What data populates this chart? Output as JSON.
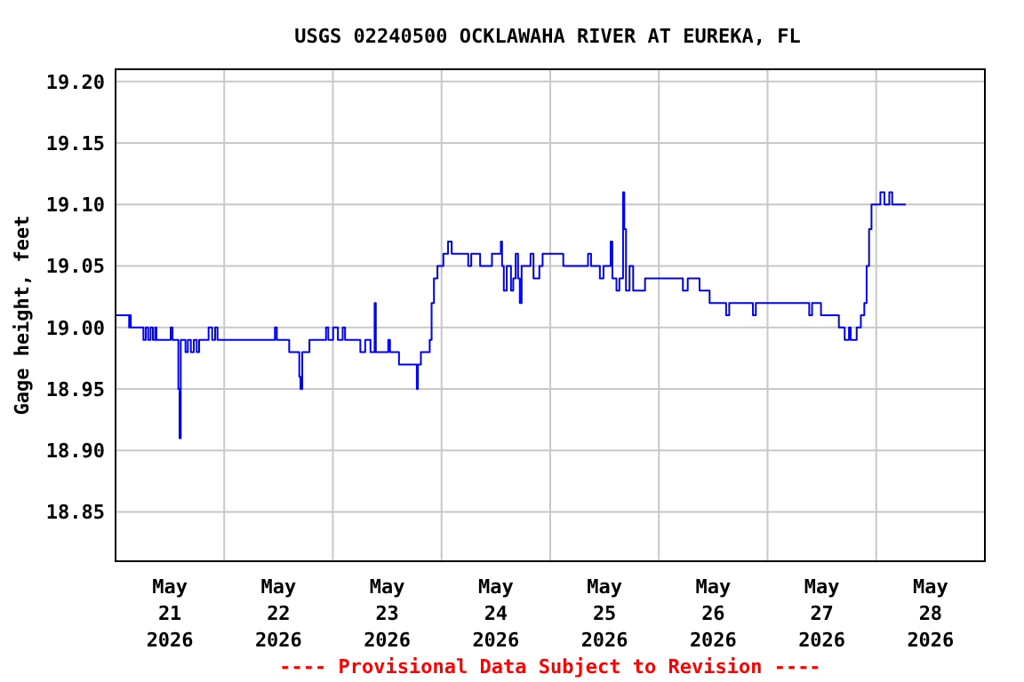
{
  "chart_data": {
    "type": "step",
    "title": "USGS 02240500 OCKLAWAHA RIVER AT EUREKA, FL",
    "ylabel": "Gage height, feet",
    "annotations": [
      "---- Provisional Data Subject to Revision ----"
    ],
    "xlim": [
      "2026-05-21T00:00",
      "2026-05-29T00:00"
    ],
    "xticks": [
      {
        "value": "2026-05-21T12:00",
        "label": "May\n21\n2026"
      },
      {
        "value": "2026-05-22T00:00",
        "label": null
      },
      {
        "value": "2026-05-22T12:00",
        "label": "May\n22\n2026"
      },
      {
        "value": "2026-05-23T00:00",
        "label": null
      },
      {
        "value": "2026-05-23T12:00",
        "label": "May\n23\n2026"
      },
      {
        "value": "2026-05-24T00:00",
        "label": null
      },
      {
        "value": "2026-05-24T12:00",
        "label": "May\n24\n2026"
      },
      {
        "value": "2026-05-25T00:00",
        "label": null
      },
      {
        "value": "2026-05-25T12:00",
        "label": "May\n25\n2026"
      },
      {
        "value": "2026-05-26T00:00",
        "label": null
      },
      {
        "value": "2026-05-26T12:00",
        "label": "May\n26\n2026"
      },
      {
        "value": "2026-05-27T00:00",
        "label": null
      },
      {
        "value": "2026-05-27T12:00",
        "label": "May\n27\n2026"
      },
      {
        "value": "2026-05-28T00:00",
        "label": null
      },
      {
        "value": "2026-05-28T12:00",
        "label": "May\n28\n2026"
      }
    ],
    "ylim": [
      18.81,
      19.21
    ],
    "yticks": [
      {
        "value": 18.85,
        "label": "18.85"
      },
      {
        "value": 18.9,
        "label": "18.90"
      },
      {
        "value": 18.95,
        "label": "18.95"
      },
      {
        "value": 19,
        "label": "19.00"
      },
      {
        "value": 19.05,
        "label": "19.05"
      },
      {
        "value": 19.1,
        "label": "19.10"
      },
      {
        "value": 19.15,
        "label": "19.15"
      },
      {
        "value": 19.2,
        "label": "19.20"
      }
    ],
    "grid": true,
    "series": [
      {
        "color": "#0000ff",
        "x": [
          "2026-05-21T00:00",
          "2026-05-21T02:40",
          "2026-05-21T03:00",
          "2026-05-21T03:07",
          "2026-05-21T03:22",
          "2026-05-21T06:09",
          "2026-05-21T06:40",
          "2026-05-21T07:12",
          "2026-05-21T07:44",
          "2026-05-21T08:15",
          "2026-05-21T08:46",
          "2026-05-21T09:01",
          "2026-05-21T12:10",
          "2026-05-21T12:35",
          "2026-05-21T13:52",
          "2026-05-21T14:08",
          "2026-05-21T14:24",
          "2026-05-21T15:27",
          "2026-05-21T15:58",
          "2026-05-21T16:38",
          "2026-05-21T17:17",
          "2026-05-21T17:56",
          "2026-05-21T18:27",
          "2026-05-21T20:33",
          "2026-05-21T21:20",
          "2026-05-21T21:59",
          "2026-05-21T22:31",
          "2026-05-22T11:12",
          "2026-05-22T11:37",
          "2026-05-22T14:21",
          "2026-05-22T16:35",
          "2026-05-22T16:51",
          "2026-05-22T17:14",
          "2026-05-22T18:49",
          "2026-05-22T22:29",
          "2026-05-22T22:59",
          "2026-05-23T00:03",
          "2026-05-23T01:06",
          "2026-05-23T02:10",
          "2026-05-23T02:41",
          "2026-05-23T06:04",
          "2026-05-23T07:08",
          "2026-05-23T08:18",
          "2026-05-23T09:13",
          "2026-05-23T09:29",
          "2026-05-23T12:14",
          "2026-05-23T12:37",
          "2026-05-23T14:36",
          "2026-05-23T18:32",
          "2026-05-23T18:46",
          "2026-05-23T19:26",
          "2026-05-23T21:23",
          "2026-05-23T21:48",
          "2026-05-23T22:19",
          "2026-05-23T23:05",
          "2026-05-24T00:24",
          "2026-05-24T01:26",
          "2026-05-24T02:14",
          "2026-05-24T05:54",
          "2026-05-24T06:33",
          "2026-05-24T08:31",
          "2026-05-24T11:08",
          "2026-05-24T13:06",
          "2026-05-24T13:22",
          "2026-05-24T13:45",
          "2026-05-24T14:24",
          "2026-05-24T15:20",
          "2026-05-24T15:50",
          "2026-05-24T16:22",
          "2026-05-24T16:54",
          "2026-05-24T17:17",
          "2026-05-24T17:41",
          "2026-05-24T19:39",
          "2026-05-24T20:18",
          "2026-05-24T21:36",
          "2026-05-24T22:19",
          "2026-05-25T02:53",
          "2026-05-25T08:21",
          "2026-05-25T09:01",
          "2026-05-25T10:58",
          "2026-05-25T11:46",
          "2026-05-25T13:21",
          "2026-05-25T13:44",
          "2026-05-25T14:38",
          "2026-05-25T15:17",
          "2026-05-25T16:05",
          "2026-05-25T16:21",
          "2026-05-25T16:44",
          "2026-05-25T17:31",
          "2026-05-25T18:19",
          "2026-05-25T20:56",
          "2026-05-26T05:18",
          "2026-05-26T06:22",
          "2026-05-26T08:59",
          "2026-05-26T11:12",
          "2026-05-26T14:51",
          "2026-05-26T15:32",
          "2026-05-26T20:46",
          "2026-05-26T21:24",
          "2026-05-27T09:12",
          "2026-05-27T09:50",
          "2026-05-27T11:48",
          "2026-05-27T15:45",
          "2026-05-27T17:02",
          "2026-05-27T17:59",
          "2026-05-27T18:22",
          "2026-05-27T19:41",
          "2026-05-27T20:36",
          "2026-05-27T21:22",
          "2026-05-27T21:53",
          "2026-05-27T22:25",
          "2026-05-27T22:57",
          "2026-05-28T00:55",
          "2026-05-28T01:49",
          "2026-05-28T02:53",
          "2026-05-28T03:32",
          "2026-05-28T06:32"
        ],
        "values": [
          19.01,
          19.01,
          19.0,
          19.01,
          19.0,
          18.99,
          19.0,
          18.99,
          19.0,
          18.99,
          19.0,
          18.99,
          19.0,
          18.99,
          18.95,
          18.91,
          18.99,
          18.98,
          18.99,
          18.98,
          18.99,
          18.98,
          18.99,
          19.0,
          18.99,
          19.0,
          18.99,
          19.0,
          18.99,
          18.98,
          18.96,
          18.95,
          18.98,
          18.99,
          19.0,
          18.99,
          19.0,
          18.99,
          19.0,
          18.99,
          18.98,
          18.99,
          18.98,
          19.02,
          18.98,
          18.99,
          18.98,
          18.97,
          18.95,
          18.97,
          18.98,
          18.99,
          19.02,
          19.04,
          19.05,
          19.06,
          19.07,
          19.06,
          19.05,
          19.06,
          19.05,
          19.06,
          19.07,
          19.05,
          19.03,
          19.05,
          19.03,
          19.04,
          19.06,
          19.04,
          19.02,
          19.05,
          19.06,
          19.04,
          19.05,
          19.06,
          19.05,
          19.06,
          19.05,
          19.04,
          19.05,
          19.07,
          19.04,
          19.03,
          19.04,
          19.11,
          19.08,
          19.03,
          19.05,
          19.03,
          19.04,
          19.03,
          19.04,
          19.03,
          19.02,
          19.01,
          19.02,
          19.01,
          19.02,
          19.01,
          19.02,
          19.01,
          19.0,
          18.99,
          19.0,
          18.99,
          19.0,
          19.01,
          19.02,
          19.05,
          19.08,
          19.1,
          19.11,
          19.1,
          19.11,
          19.1,
          19.1
        ]
      }
    ]
  }
}
